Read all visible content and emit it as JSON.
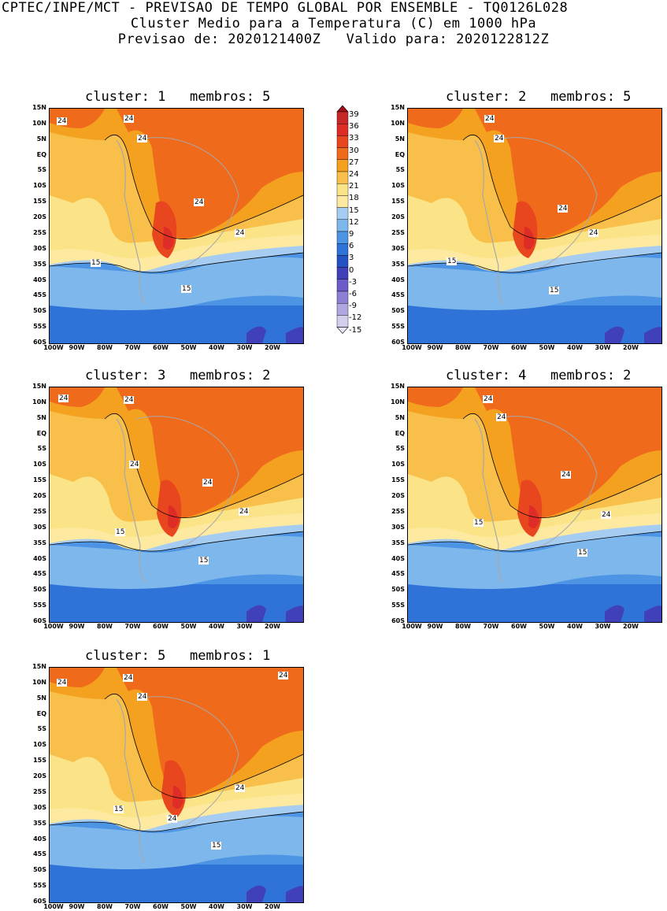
{
  "header": {
    "line1": "CPTEC/INPE/MCT - PREVISAO DE TEMPO GLOBAL POR ENSEMBLE - TQ0126L028",
    "line2": "Cluster Medio para a Temperatura (C) em 1000 hPa",
    "line3": "Previsao de: 2020121400Z   Valido para: 2020122812Z"
  },
  "axes": {
    "lat_labels": [
      "15N",
      "10N",
      "5N",
      "EQ",
      "5S",
      "10S",
      "15S",
      "20S",
      "25S",
      "30S",
      "35S",
      "40S",
      "45S",
      "50S",
      "55S",
      "60S"
    ],
    "lon_labels": [
      "100W",
      "90W",
      "80W",
      "70W",
      "60W",
      "50W",
      "40W",
      "30W",
      "20W"
    ]
  },
  "colorbar": {
    "labels": [
      "39",
      "36",
      "33",
      "30",
      "27",
      "24",
      "21",
      "18",
      "15",
      "12",
      "9",
      "6",
      "3",
      "0",
      "-3",
      "-6",
      "-9",
      "-12",
      "-15"
    ],
    "colors": [
      "#a50f15",
      "#c62828",
      "#de2d26",
      "#e8461e",
      "#f06a1b",
      "#f4a120",
      "#f8c04a",
      "#fbe487",
      "#fde9a0",
      "#a6cdf1",
      "#7db7ec",
      "#4d94e4",
      "#2f72d8",
      "#2452c4",
      "#4040b8",
      "#6b5cc7",
      "#8d7fd4",
      "#b1a6e0",
      "#d4cdee"
    ]
  },
  "panels": [
    {
      "title": "cluster: 1   membros: 5",
      "contour_labels": [
        "24",
        "24",
        "24",
        "24",
        "24",
        "15",
        "15"
      ]
    },
    {
      "title": "cluster: 2   membros: 5",
      "contour_labels": [
        "24",
        "24",
        "24",
        "24",
        "15",
        "15"
      ]
    },
    {
      "title": "cluster: 3   membros: 2",
      "contour_labels": [
        "24",
        "24",
        "24",
        "24",
        "24",
        "15",
        "15"
      ]
    },
    {
      "title": "cluster: 4   membros: 2",
      "contour_labels": [
        "24",
        "24",
        "24",
        "24",
        "15",
        "15"
      ]
    },
    {
      "title": "cluster: 5   membros: 1",
      "contour_labels": [
        "24",
        "24",
        "24",
        "24",
        "24",
        "24",
        "15",
        "15"
      ]
    }
  ]
}
